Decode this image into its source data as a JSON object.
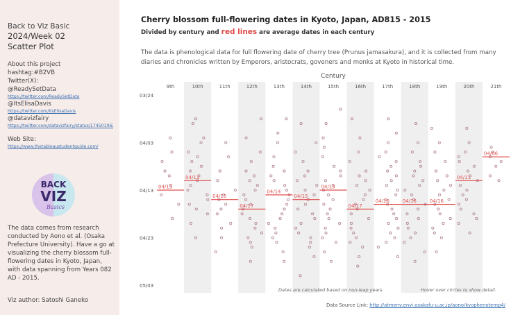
{
  "sidebar": {
    "line1": "Back to Viz Basic",
    "line2": "2024/Week 02",
    "line3": "Scatter Plot",
    "about": "About this project",
    "hashtag": "hashtag:#B2VB",
    "twitter": "Twitter(X):",
    "handle1": "@ReadySetData",
    "link1": "https://twitter.com/ReadySetData",
    "handle2": "@ItsElisaDavis",
    "link2": "https://twitter.com/ItsElisaDavis",
    "handle3": "@datavizfairy",
    "link3": "https://twitter.com/datavizfairy/status/17450106211",
    "website_label": "Web Site:",
    "website_link": "https://www.thetableaustudentguide.com/",
    "logo_line1": "BACK",
    "logo_line2": "VIZ",
    "logo_line3": "Basics",
    "source_text": "The data comes from research conducted by Aono et al. (Osaka Prefecture University). Have a go at visualizing the cherry blossom full-flowering dates in Kyoto, Japan, with data spanning from Years 082 AD - 2015.",
    "author": "Viz author: Satoshi Ganeko"
  },
  "header": {
    "title": "Cherry blossom full-flowering dates in Kyoto, Japan, AD815 - 2015",
    "subtitle_pre": "Divided by century and ",
    "subtitle_red": "red lines",
    "subtitle_post": " are average dates in each century",
    "description": "The data is phenological data for full flowering date of cherry tree (Prunus jamasakura), and it is collected from many diaries and chronicles written by Emperors, aristocrats, goveners and monks at Kyoto in historical time."
  },
  "chart_data": {
    "type": "scatter",
    "title": "Century",
    "categories": [
      "9th",
      "10th",
      "11th",
      "12th",
      "13th",
      "14th",
      "15th",
      "16th",
      "17th",
      "18th",
      "19th",
      "20th",
      "21th"
    ],
    "y_ticks": [
      "03/24",
      "04/03",
      "04/13",
      "04/23",
      "05/03"
    ],
    "y_tick_days": [
      83,
      93,
      103,
      113,
      123
    ],
    "ylim": [
      83,
      124
    ],
    "averages": [
      {
        "century": "9th",
        "label": "04/13",
        "day": 103
      },
      {
        "century": "10th",
        "label": "04/11",
        "day": 101
      },
      {
        "century": "11th",
        "label": "04/15",
        "day": 105
      },
      {
        "century": "12th",
        "label": "04/17",
        "day": 107
      },
      {
        "century": "13th",
        "label": "04/14",
        "day": 104
      },
      {
        "century": "14th",
        "label": "04/15",
        "day": 105
      },
      {
        "century": "15th",
        "label": "04/13",
        "day": 103
      },
      {
        "century": "16th",
        "label": "04/17",
        "day": 107
      },
      {
        "century": "17th",
        "label": "04/16",
        "day": 106
      },
      {
        "century": "18th",
        "label": "04/16",
        "day": 106
      },
      {
        "century": "19th",
        "label": "04/16",
        "day": 106
      },
      {
        "century": "20th",
        "label": "04/11",
        "day": 101
      },
      {
        "century": "21th",
        "label": "04/06",
        "day": 96
      }
    ],
    "points": [
      [
        92,
        95,
        97,
        99,
        100,
        102,
        104,
        106,
        109
      ],
      [
        88,
        89,
        92,
        93,
        95,
        96,
        97,
        98,
        99,
        100,
        101,
        102,
        103,
        104,
        105,
        106,
        107,
        108,
        110,
        113
      ],
      [
        93,
        96,
        99,
        101,
        103,
        104,
        105,
        106,
        107,
        108,
        110,
        111,
        113,
        116
      ],
      [
        88,
        92,
        95,
        97,
        99,
        100,
        101,
        102,
        103,
        104,
        105,
        106,
        107,
        108,
        109,
        110,
        111,
        112,
        113,
        114,
        115,
        118
      ],
      [
        88,
        91,
        93,
        96,
        98,
        99,
        100,
        101,
        102,
        103,
        104,
        105,
        106,
        107,
        108,
        109,
        110,
        111,
        112,
        113,
        114,
        116,
        118
      ],
      [
        89,
        93,
        95,
        97,
        99,
        100,
        101,
        102,
        103,
        104,
        105,
        106,
        107,
        108,
        109,
        110,
        111,
        112,
        113,
        114,
        115,
        117,
        121
      ],
      [
        86,
        89,
        92,
        94,
        96,
        98,
        99,
        100,
        101,
        102,
        103,
        104,
        105,
        106,
        107,
        108,
        109,
        110,
        111,
        112,
        113,
        114,
        116,
        118
      ],
      [
        88,
        92,
        95,
        97,
        99,
        100,
        101,
        102,
        103,
        104,
        105,
        106,
        107,
        108,
        109,
        110,
        111,
        112,
        113,
        114,
        115,
        117,
        119
      ],
      [
        88,
        91,
        93,
        95,
        96,
        97,
        98,
        99,
        100,
        101,
        102,
        103,
        104,
        105,
        106,
        107,
        108,
        109,
        110,
        111,
        112,
        113,
        114,
        115,
        117
      ],
      [
        89,
        93,
        95,
        97,
        98,
        99,
        100,
        101,
        102,
        103,
        104,
        105,
        106,
        107,
        108,
        109,
        110,
        111,
        112,
        113,
        114,
        116,
        118
      ],
      [
        90,
        93,
        95,
        97,
        99,
        100,
        101,
        102,
        103,
        104,
        105,
        106,
        107,
        108,
        109,
        110,
        111,
        112,
        113,
        116
      ],
      [
        90,
        93,
        95,
        96,
        97,
        98,
        99,
        100,
        101,
        102,
        103,
        104,
        105,
        106,
        107,
        108,
        109,
        110,
        112
      ],
      [
        94,
        95,
        96,
        97,
        98,
        100,
        101
      ]
    ],
    "notes": {
      "left": "Dates are calculated based on non-leap years.",
      "right": "Hover over circles to show detail."
    },
    "colors": {
      "band": "#efefef",
      "dot": "#b58a96",
      "avg": "#e0504f"
    }
  },
  "footer": {
    "label": "Data Source Link: ",
    "link": "http://atmenv.envi.osakafu-u.ac.jp/aono/kyophenotemp4/"
  }
}
